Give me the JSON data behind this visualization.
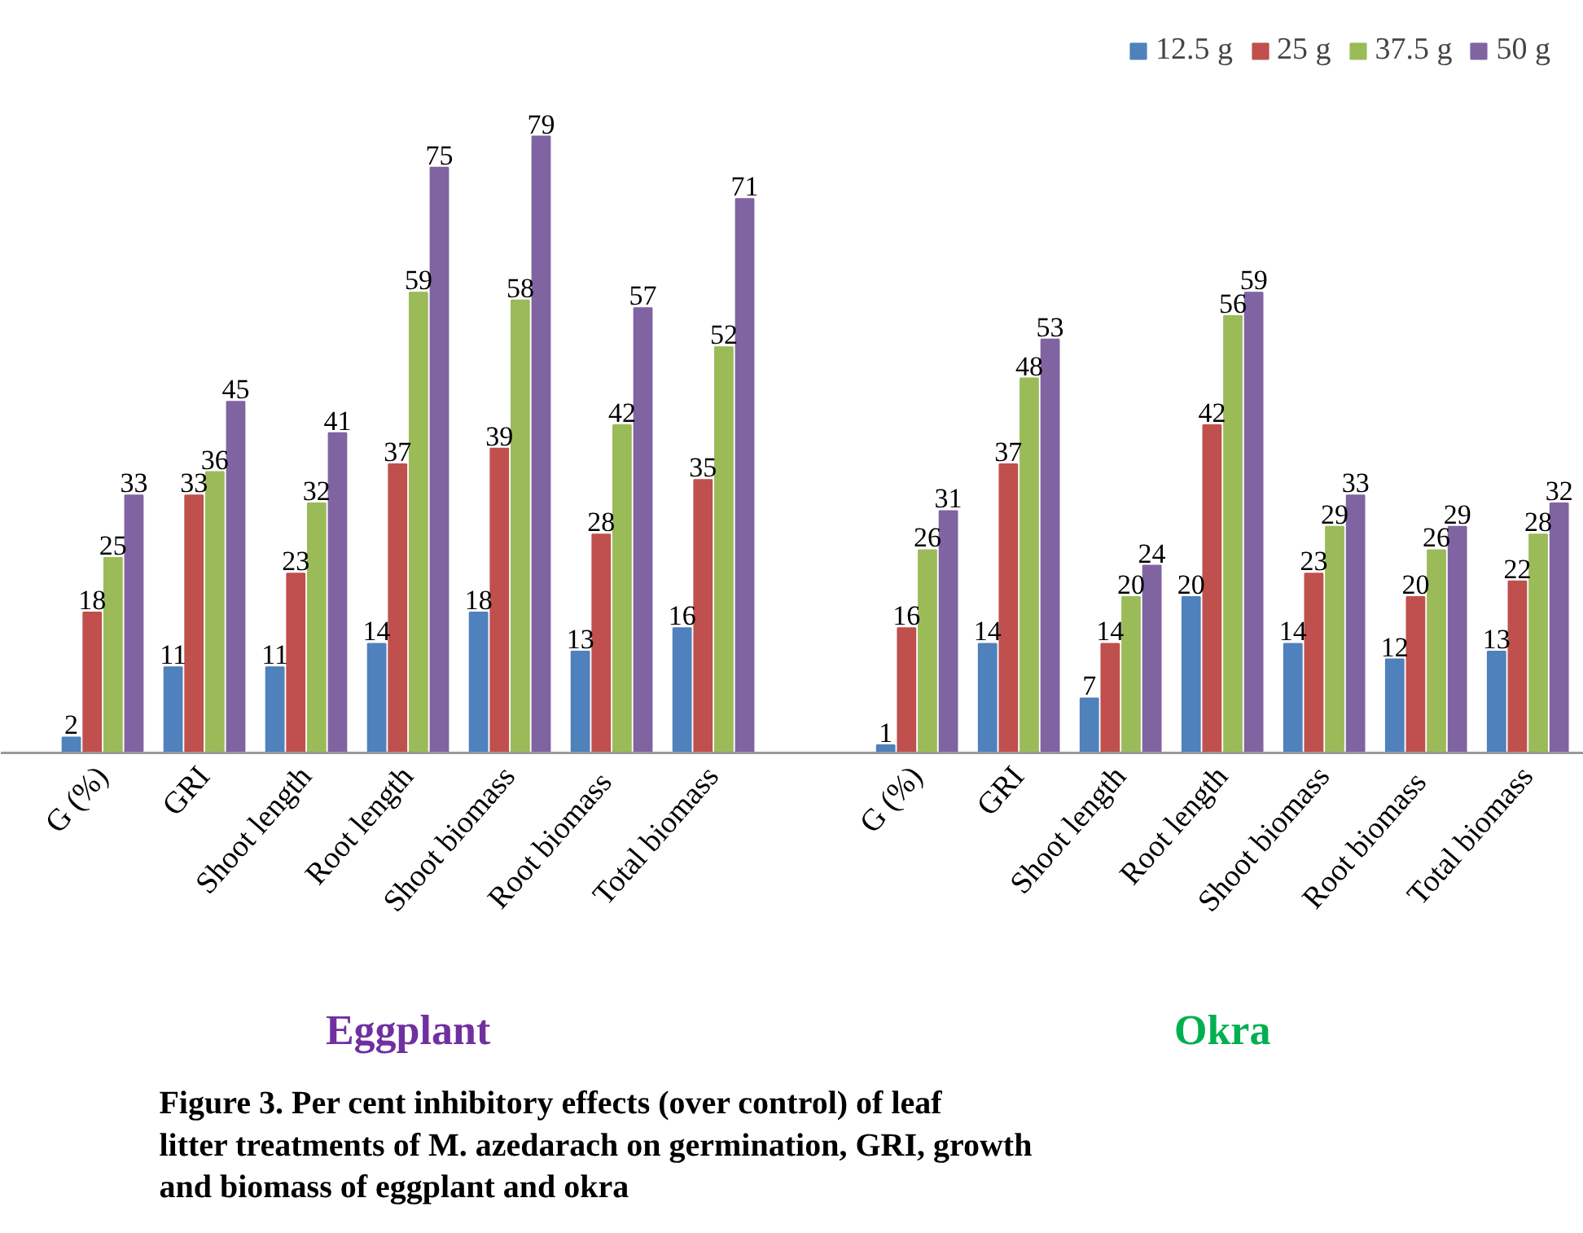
{
  "chart_data": {
    "type": "bar",
    "categories": [
      "G (%)",
      "GRI",
      "Shoot length",
      "Root length",
      "Shoot biomass",
      "Root  biomass",
      "Total biomass",
      null,
      "G (%)",
      "GRI",
      "Shoot length",
      "Root length",
      "Shoot biomass",
      "Root  biomass",
      "Total biomass"
    ],
    "series": [
      {
        "name": "12.5 g",
        "color": "#4f81bd",
        "values": [
          2,
          11,
          11,
          14,
          18,
          13,
          16,
          null,
          1,
          14,
          7,
          20,
          14,
          12,
          13
        ]
      },
      {
        "name": "25 g",
        "color": "#c0504d",
        "values": [
          18,
          33,
          23,
          37,
          39,
          28,
          35,
          null,
          16,
          37,
          14,
          42,
          23,
          20,
          22
        ]
      },
      {
        "name": "37.5 g",
        "color": "#9bbb59",
        "values": [
          25,
          36,
          32,
          59,
          58,
          42,
          52,
          null,
          26,
          48,
          20,
          56,
          29,
          26,
          28
        ]
      },
      {
        "name": "50 g",
        "color": "#8064a2",
        "values": [
          33,
          45,
          41,
          75,
          79,
          57,
          71,
          null,
          31,
          53,
          24,
          59,
          33,
          29,
          32
        ]
      }
    ],
    "data_labels": true,
    "legend": "top right",
    "grid": false,
    "annotations": [
      "Eggplant",
      "Okra",
      "Figure 3. Per cent inhibitory  effects (over control) of leaf litter treatments of M. azedarach on germination, GRI, growth and biomass of  eggplant and okra"
    ]
  }
}
